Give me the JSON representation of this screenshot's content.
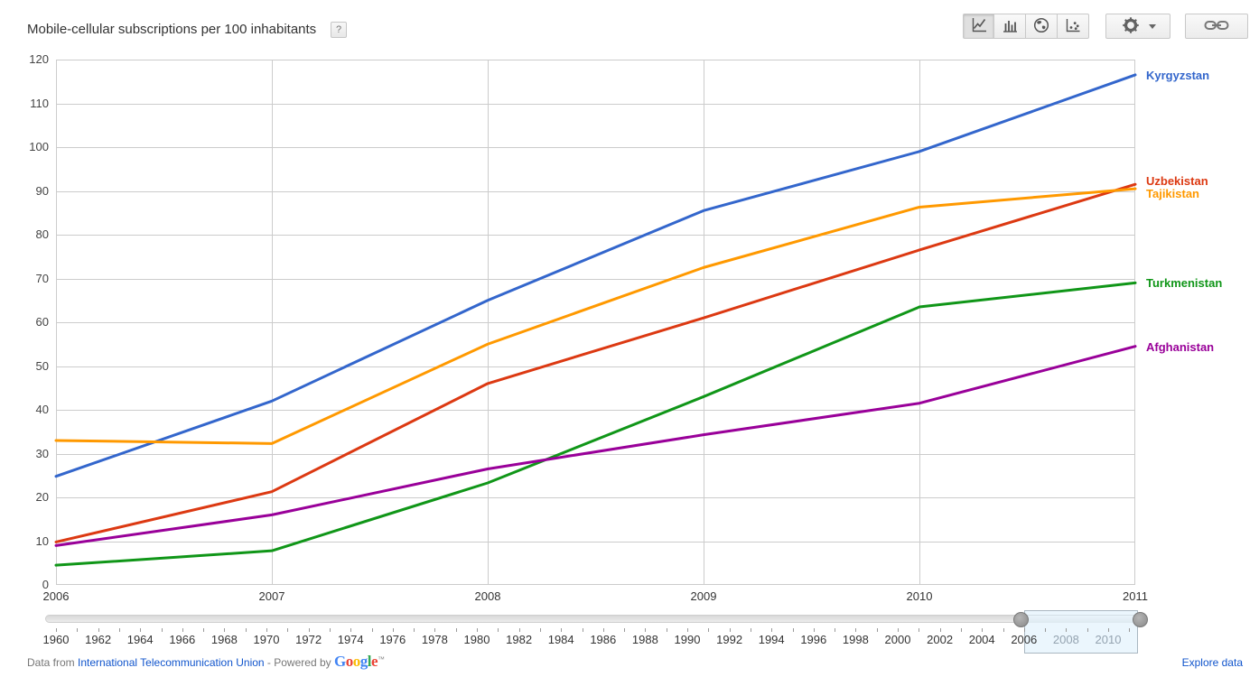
{
  "header": {
    "title": "Mobile-cellular subscriptions per 100 inhabitants",
    "help": "?"
  },
  "toolbar": {
    "chart_types": [
      "line-chart",
      "column-chart",
      "map-chart",
      "scatter-chart"
    ],
    "selected_chart_type": "line-chart"
  },
  "chart_data": {
    "type": "line",
    "title": "Mobile-cellular subscriptions per 100 inhabitants",
    "x": [
      2006,
      2007,
      2008,
      2009,
      2010,
      2011
    ],
    "series": [
      {
        "name": "Kyrgyzstan",
        "color": "#3366CC",
        "values": [
          24.8,
          42.0,
          65.0,
          85.5,
          99.0,
          116.5
        ]
      },
      {
        "name": "Uzbekistan",
        "color": "#DC3912",
        "values": [
          9.8,
          21.3,
          46.0,
          61.0,
          76.5,
          91.5
        ]
      },
      {
        "name": "Tajikistan",
        "color": "#FF9900",
        "values": [
          33.0,
          32.3,
          55.0,
          72.5,
          86.3,
          90.5
        ]
      },
      {
        "name": "Turkmenistan",
        "color": "#109618",
        "values": [
          4.5,
          7.8,
          23.3,
          43.0,
          63.5,
          69.0
        ]
      },
      {
        "name": "Afghanistan",
        "color": "#990099",
        "values": [
          9.0,
          16.0,
          26.5,
          34.3,
          41.5,
          54.5
        ]
      }
    ],
    "ylim": [
      0,
      120
    ],
    "ytick_step": 10,
    "grid": true,
    "gridline_color": "#cccccc",
    "legend_position": "right-edge-labels"
  },
  "timeline": {
    "first_year": 1960,
    "last_year": 2011,
    "last_label": 2010,
    "label_step": 2,
    "selection": {
      "from": 2006,
      "to": 2011
    }
  },
  "footer": {
    "prefix": "Data from ",
    "source_link": "International Telecommunication Union",
    "middle": " - Powered by ",
    "google_letters": [
      {
        "ch": "G",
        "color": "#4285F4"
      },
      {
        "ch": "o",
        "color": "#EA4335"
      },
      {
        "ch": "o",
        "color": "#FBBC05"
      },
      {
        "ch": "g",
        "color": "#4285F4"
      },
      {
        "ch": "l",
        "color": "#34A853"
      },
      {
        "ch": "e",
        "color": "#EA4335"
      }
    ],
    "trademark": "™",
    "explore_link": "Explore data"
  }
}
